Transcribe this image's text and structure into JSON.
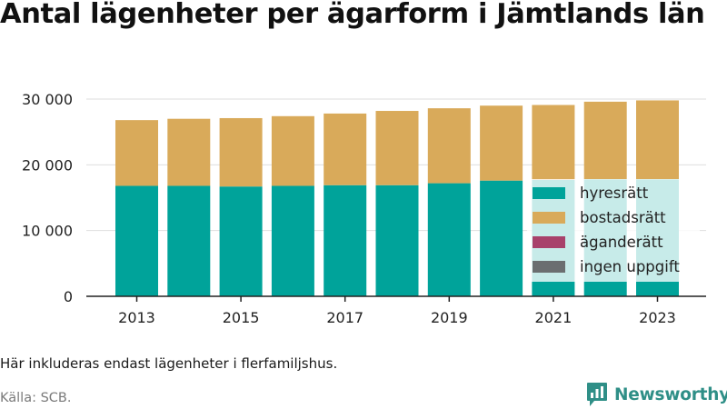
{
  "chart_data": {
    "type": "bar",
    "stacked": true,
    "title": "Antal lägenheter per ägarform i Jämtlands län",
    "xlabel": "",
    "ylabel": "",
    "categories": [
      "2013",
      "2014",
      "2015",
      "2016",
      "2017",
      "2018",
      "2019",
      "2020",
      "2021",
      "2022",
      "2023"
    ],
    "x_tick_labels": [
      "2013",
      "2015",
      "2017",
      "2019",
      "2021",
      "2023"
    ],
    "y_tick_labels": [
      "0",
      "10 000",
      "20 000",
      "30 000"
    ],
    "y_ticks": [
      0,
      10000,
      20000,
      30000
    ],
    "ylim": [
      0,
      32000
    ],
    "grid": true,
    "legend_position": "bottom-right",
    "series": [
      {
        "name": "hyresrätt",
        "color": "#00a39a",
        "values": [
          16800,
          16800,
          16700,
          16800,
          16900,
          16900,
          17200,
          17600,
          17700,
          17800,
          17800
        ]
      },
      {
        "name": "bostadsrätt",
        "color": "#d9aa5a",
        "values": [
          10000,
          10200,
          10400,
          10600,
          10900,
          11300,
          11400,
          11400,
          11400,
          11800,
          12000
        ]
      },
      {
        "name": "äganderätt",
        "color": "#a8416b",
        "values": [
          0,
          0,
          0,
          0,
          0,
          0,
          0,
          0,
          0,
          0,
          0
        ]
      },
      {
        "name": "ingen uppgift",
        "color": "#6b6e70",
        "values": [
          0,
          0,
          0,
          0,
          0,
          0,
          0,
          0,
          0,
          0,
          0
        ]
      }
    ]
  },
  "footer": {
    "note": "Här inkluderas endast lägenheter i flerfamiljshus.",
    "source": "Källa: SCB.",
    "brand": "Newsworthy"
  },
  "colors": {
    "grid": "#dedede",
    "axis": "#222222",
    "brand": "#2f8f87"
  },
  "icons": {
    "brand_logo": "bar-chart-speech-bubble-icon"
  }
}
